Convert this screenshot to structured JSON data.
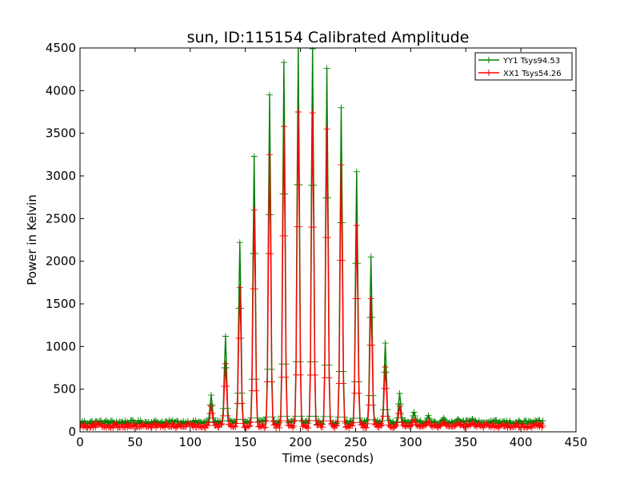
{
  "chart_data": {
    "type": "line",
    "title": "sun, ID:115154 Calibrated Amplitude",
    "xlabel": "Time (seconds)",
    "ylabel": "Power in Kelvin",
    "xlim": [
      0,
      450
    ],
    "ylim": [
      0,
      4500
    ],
    "xticks": [
      0,
      50,
      100,
      150,
      200,
      250,
      300,
      350,
      400,
      450
    ],
    "yticks": [
      0,
      500,
      1000,
      1500,
      2000,
      2500,
      3000,
      3500,
      4000,
      4500
    ],
    "grid": false,
    "legend_position": "top-right",
    "x_range": [
      0,
      420
    ],
    "sample_interval_s": 1,
    "baseline_description": "noisy baseline between peaks",
    "series": [
      {
        "name": "YY1 Tsys94.53",
        "color": "#008000",
        "marker": "+",
        "baseline": 110,
        "peaks": [
          {
            "x": 119,
            "y": 430
          },
          {
            "x": 132,
            "y": 1120
          },
          {
            "x": 145,
            "y": 2220
          },
          {
            "x": 158,
            "y": 3230
          },
          {
            "x": 172,
            "y": 3950
          },
          {
            "x": 185,
            "y": 4330
          },
          {
            "x": 198,
            "y": 4500
          },
          {
            "x": 211,
            "y": 4490
          },
          {
            "x": 224,
            "y": 4260
          },
          {
            "x": 237,
            "y": 3800
          },
          {
            "x": 251,
            "y": 3050
          },
          {
            "x": 264,
            "y": 2050
          },
          {
            "x": 277,
            "y": 1040
          },
          {
            "x": 290,
            "y": 450
          },
          {
            "x": 303,
            "y": 230
          },
          {
            "x": 316,
            "y": 190
          },
          {
            "x": 330,
            "y": 160
          },
          {
            "x": 343,
            "y": 150
          },
          {
            "x": 356,
            "y": 150
          }
        ]
      },
      {
        "name": "XX1 Tsys54.26",
        "color": "#ff0000",
        "marker": "+",
        "baseline": 70,
        "peaks": [
          {
            "x": 119,
            "y": 300
          },
          {
            "x": 132,
            "y": 800
          },
          {
            "x": 145,
            "y": 1690
          },
          {
            "x": 158,
            "y": 2600
          },
          {
            "x": 172,
            "y": 3250
          },
          {
            "x": 185,
            "y": 3580
          },
          {
            "x": 198,
            "y": 3750
          },
          {
            "x": 211,
            "y": 3740
          },
          {
            "x": 224,
            "y": 3550
          },
          {
            "x": 237,
            "y": 3130
          },
          {
            "x": 251,
            "y": 2420
          },
          {
            "x": 264,
            "y": 1560
          },
          {
            "x": 277,
            "y": 760
          },
          {
            "x": 290,
            "y": 300
          },
          {
            "x": 303,
            "y": 140
          },
          {
            "x": 316,
            "y": 120
          },
          {
            "x": 330,
            "y": 110
          },
          {
            "x": 343,
            "y": 100
          },
          {
            "x": 356,
            "y": 100
          }
        ]
      }
    ]
  }
}
